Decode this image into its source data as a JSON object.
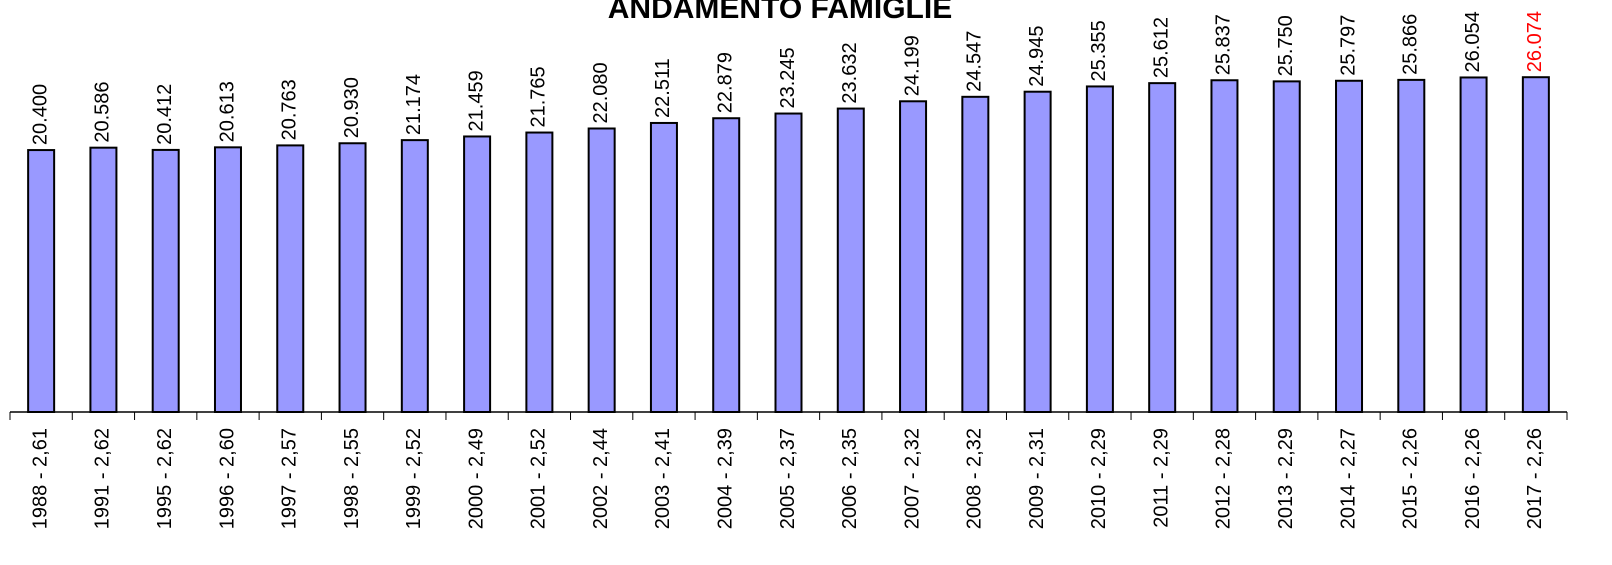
{
  "chart_data": {
    "type": "bar",
    "title": "ANDAMENTO FAMIGLIE",
    "categories": [
      "1988 - 2,61",
      "1991 - 2,62",
      "1995 - 2,62",
      "1996 - 2,60",
      "1997 - 2,57",
      "1998 - 2,55",
      "1999 - 2,52",
      "2000 - 2,49",
      "2001 - 2,52",
      "2002 - 2,44",
      "2003 - 2,41",
      "2004 - 2,39",
      "2005 - 2,37",
      "2006 - 2,35",
      "2007 - 2,32",
      "2008 - 2,32",
      "2009 - 2,31",
      "2010 - 2,29",
      "2011 - 2,29",
      "2012 - 2,28",
      "2013 - 2,29",
      "2014 - 2,27",
      "2015 - 2,26",
      "2016 - 2,26",
      "2017 - 2,26"
    ],
    "values": [
      20400,
      20586,
      20412,
      20613,
      20763,
      20930,
      21174,
      21459,
      21765,
      22080,
      22511,
      22879,
      23245,
      23632,
      24199,
      24547,
      24945,
      25355,
      25612,
      25837,
      25750,
      25797,
      25866,
      26054,
      26074
    ],
    "value_labels": [
      "20.400",
      "20.586",
      "20.412",
      "20.613",
      "20.763",
      "20.930",
      "21.174",
      "21.459",
      "21.765",
      "22.080",
      "22.511",
      "22.879",
      "23.245",
      "23.632",
      "24.199",
      "24.547",
      "24.945",
      "25.355",
      "25.612",
      "25.837",
      "25.750",
      "25.797",
      "25.866",
      "26.054",
      "26.074"
    ],
    "value_label_colors": [
      "#000000",
      "#000000",
      "#000000",
      "#000000",
      "#000000",
      "#000000",
      "#000000",
      "#000000",
      "#000000",
      "#000000",
      "#000000",
      "#000000",
      "#000000",
      "#000000",
      "#000000",
      "#000000",
      "#000000",
      "#000000",
      "#000000",
      "#000000",
      "#000000",
      "#000000",
      "#000000",
      "#000000",
      "#ff0000"
    ],
    "color": "#9999ff"
  }
}
